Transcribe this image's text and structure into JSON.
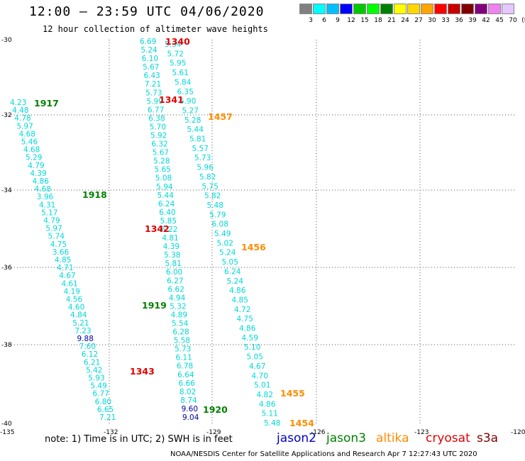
{
  "header": {
    "title": "12:00 – 23:59 UTC 04/06/2020",
    "subtitle": "12 hour collection of altimeter wave heights"
  },
  "legend": {
    "labels": [
      "3",
      "6",
      "9",
      "12",
      "15",
      "18",
      "21",
      "24",
      "27",
      "30",
      "33",
      "36",
      "39",
      "42",
      "45",
      "70",
      "(ft)"
    ],
    "colors": [
      "#808080",
      "#00ffff",
      "#00bfff",
      "#0000ff",
      "#00c800",
      "#00ff00",
      "#008000",
      "#ffff00",
      "#ffd700",
      "#ffa500",
      "#ff0000",
      "#c80000",
      "#800000",
      "#800080",
      "#ee82ee",
      "#e6c8ff",
      "#000000"
    ]
  },
  "axes": {
    "lat_labels": [
      "-30",
      "-32",
      "-34",
      "-36",
      "-38",
      "-40"
    ],
    "lon_labels": [
      "-135",
      "-132",
      "-129",
      "-126",
      "-123",
      "-120"
    ]
  },
  "color_scale": {
    "cyan": "#00d8d8",
    "dark_blue": "#0000a0",
    "jason3": "#008000",
    "altika": "#ff8c00",
    "cryosat": "#e00000"
  },
  "tracks": [
    {
      "label": "1917",
      "label_color": "#008000",
      "values": [
        "4.23",
        "4.48",
        "4.78",
        "5.97",
        "4.68",
        "5.46",
        "4.68",
        "5.29",
        "4.79",
        "4.39",
        "4.86",
        "4.68",
        "3.96",
        "4.31",
        "5.17",
        "4.79",
        "5.97",
        "5.74",
        "4.75",
        "3.66",
        "4.85",
        "4.71",
        "4.67",
        "4.61",
        "4.19",
        "4.56",
        "4.60",
        "4.84",
        "5.21",
        "7.23",
        "9.88",
        "7.60",
        "6.12",
        "6.21",
        "5.42",
        "5.93",
        "5.49",
        "6.77",
        "6.80",
        "6.65",
        "7.21"
      ]
    },
    {
      "label": "1918",
      "label_color": "#008000"
    },
    {
      "label": "1919",
      "label_color": "#008000"
    },
    {
      "label": "1920",
      "label_color": "#008000"
    },
    {
      "label": "1340",
      "label_color": "#e00000",
      "values": [
        "6.69",
        "5.24",
        "6.10",
        "5.67",
        "6.43",
        "7.21",
        "5.73",
        "5.99",
        "6.77",
        "6.38",
        "5.70",
        "5.92",
        "6.32",
        "5.67",
        "5.28",
        "5.65",
        "5.08",
        "5.94",
        "5.44",
        "6.24",
        "6.40",
        "5.85",
        "5.22",
        "4.81",
        "4.39",
        "5.38",
        "5.81",
        "6.00",
        "6.27",
        "6.62",
        "4.94",
        "5.32",
        "4.89",
        "5.54",
        "6.28",
        "5.58",
        "5.73",
        "6.11",
        "6.78",
        "6.64",
        "6.66",
        "8.02",
        "8.74",
        "9.60",
        "9.04"
      ]
    },
    {
      "label": "1341",
      "label_color": "#e00000"
    },
    {
      "label": "1342",
      "label_color": "#e00000"
    },
    {
      "label": "1343",
      "label_color": "#e00000"
    },
    {
      "label": "1457",
      "label_color": "#ff8c00",
      "values": [
        "5.34",
        "5.72",
        "5.95",
        "5.61",
        "5.84",
        "6.35",
        "5.90",
        "5.27",
        "5.28",
        "5.44",
        "5.81",
        "5.57",
        "5.73",
        "5.96",
        "5.82",
        "5.75",
        "5.82",
        "5.48",
        "5.79",
        "6.08",
        "5.49",
        "5.02",
        "5.24",
        "5.05",
        "6.24",
        "5.24",
        "4.86",
        "4.85",
        "4.72",
        "4.75",
        "4.86",
        "4.59",
        "5.10",
        "5.05",
        "4.67",
        "4.70",
        "5.01",
        "4.82",
        "4.86",
        "5.11",
        "5.48"
      ]
    },
    {
      "label": "1456",
      "label_color": "#ff8c00"
    },
    {
      "label": "1455",
      "label_color": "#ff8c00"
    },
    {
      "label": "1454",
      "label_color": "#ff8c00"
    }
  ],
  "footer": {
    "note": "note:  1) Time is in UTC;  2) SWH is in feet",
    "satellites": [
      {
        "name": "jason2",
        "color": "#0000cc"
      },
      {
        "name": "jason3",
        "color": "#008000"
      },
      {
        "name": "altika",
        "color": "#ff8c00"
      },
      {
        "name": "cryosat",
        "color": "#e00000"
      },
      {
        "name": "s3a",
        "color": "#800000"
      }
    ],
    "credit": "NOAA/NESDIS Center for Satellite Applications and Research    Apr  7 12:27:43 UTC 2020"
  }
}
